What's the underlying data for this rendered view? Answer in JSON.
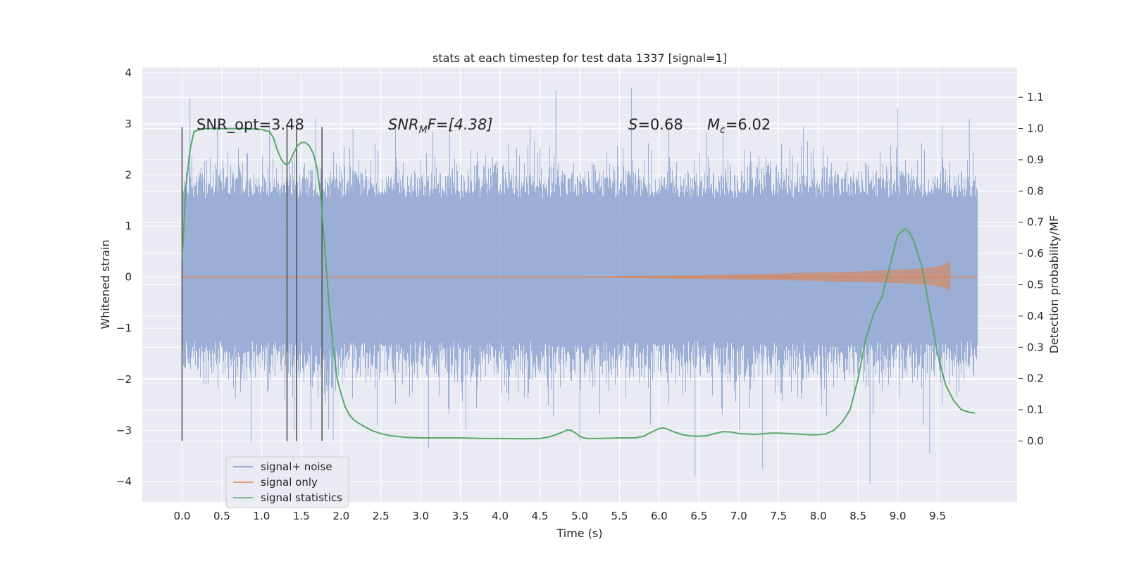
{
  "chart_data": {
    "type": "line",
    "title": "stats at each timestep for test data 1337 [signal=1]",
    "xlabel": "Time (s)",
    "ylabel": "Whitened strain",
    "ylabel_right": "Detection probability/MF",
    "xlim": [
      -0.5,
      10.5
    ],
    "ylim": [
      -4.4,
      4.1
    ],
    "ylim_right": [
      -0.195,
      1.195
    ],
    "x_ticks": [
      "0.0",
      "0.5",
      "1.0",
      "1.5",
      "2.0",
      "2.5",
      "3.0",
      "3.5",
      "4.0",
      "4.5",
      "5.0",
      "5.5",
      "6.0",
      "6.5",
      "7.0",
      "7.5",
      "8.0",
      "8.5",
      "9.0",
      "9.5"
    ],
    "y_ticks": [
      "4",
      "3",
      "2",
      "1",
      "0",
      "−1",
      "−2",
      "−3",
      "−4"
    ],
    "y_right_ticks": [
      "0.0",
      "0.1",
      "0.2",
      "0.3",
      "0.4",
      "0.5",
      "0.6",
      "0.7",
      "0.8",
      "0.9",
      "1.0",
      "1.1"
    ],
    "grid": true,
    "legend_position": "lower-left",
    "annotations": {
      "snr_opt": "SNR_opt=3.48",
      "snr_mf_main": "SNR",
      "snr_mf_sub": "M",
      "snr_mf_rest": "F=[4.38]",
      "s_main": "S",
      "s_rest": "=0.68",
      "mc_main": "M",
      "mc_sub": "c",
      "mc_rest": "=6.02"
    },
    "vertical_markers_x": [
      0.0,
      1.32,
      1.44,
      1.76
    ],
    "series": [
      {
        "name": "signal+ noise",
        "color": "#7d97c9",
        "x_range": [
          0.0,
          10.0
        ],
        "typical_band": [
          -1.4,
          1.7
        ],
        "extremes": [
          {
            "x": 0.1,
            "y": 3.5
          },
          {
            "x": 0.87,
            "y": -3.25
          },
          {
            "x": 1.68,
            "y": 3.1
          },
          {
            "x": 1.9,
            "y": -3.2
          },
          {
            "x": 2.15,
            "y": 2.9
          },
          {
            "x": 3.1,
            "y": -3.35
          },
          {
            "x": 4.7,
            "y": 3.65
          },
          {
            "x": 5.0,
            "y": -3.2
          },
          {
            "x": 5.65,
            "y": 3.7
          },
          {
            "x": 6.45,
            "y": -3.9
          },
          {
            "x": 7.3,
            "y": -3.75
          },
          {
            "x": 8.65,
            "y": -4.05
          },
          {
            "x": 9.0,
            "y": 3.3
          },
          {
            "x": 9.4,
            "y": -3.45
          },
          {
            "x": 9.9,
            "y": 3.1
          }
        ]
      },
      {
        "name": "signal only",
        "color": "#dd8452",
        "x": [
          0.0,
          4.5,
          5.5,
          6.5,
          7.5,
          8.5,
          9.0,
          9.4,
          9.6,
          9.66
        ],
        "envelope": [
          0.0,
          0.0,
          0.02,
          0.04,
          0.07,
          0.11,
          0.14,
          0.18,
          0.25,
          0.32
        ]
      },
      {
        "name": "signal statistics",
        "color": "#55a868",
        "axis": "right",
        "x": [
          0.0,
          0.05,
          0.1,
          0.15,
          0.2,
          0.3,
          0.4,
          0.5,
          0.6,
          0.8,
          1.0,
          1.1,
          1.15,
          1.2,
          1.25,
          1.3,
          1.35,
          1.4,
          1.45,
          1.5,
          1.55,
          1.6,
          1.65,
          1.7,
          1.75,
          1.8,
          1.85,
          1.9,
          1.95,
          2.0,
          2.05,
          2.1,
          2.15,
          2.2,
          2.3,
          2.4,
          2.5,
          2.6,
          2.8,
          3.0,
          3.2,
          3.5,
          3.8,
          4.0,
          4.3,
          4.5,
          4.6,
          4.7,
          4.8,
          4.85,
          4.9,
          4.95,
          5.0,
          5.05,
          5.1,
          5.2,
          5.4,
          5.5,
          5.7,
          5.8,
          5.9,
          6.0,
          6.05,
          6.1,
          6.2,
          6.3,
          6.4,
          6.5,
          6.6,
          6.7,
          6.8,
          6.9,
          7.0,
          7.2,
          7.4,
          7.5,
          7.7,
          7.9,
          8.0,
          8.1,
          8.2,
          8.3,
          8.4,
          8.5,
          8.6,
          8.7,
          8.8,
          8.9,
          9.0,
          9.1,
          9.15,
          9.2,
          9.3,
          9.4,
          9.5,
          9.6,
          9.7,
          9.8,
          9.9,
          9.97
        ],
        "values": [
          0.58,
          0.82,
          0.93,
          0.99,
          0.995,
          1.0,
          1.0,
          1.0,
          1.0,
          1.0,
          0.997,
          0.99,
          0.97,
          0.93,
          0.9,
          0.885,
          0.89,
          0.92,
          0.945,
          0.955,
          0.955,
          0.945,
          0.92,
          0.87,
          0.77,
          0.6,
          0.43,
          0.3,
          0.2,
          0.15,
          0.11,
          0.085,
          0.07,
          0.06,
          0.045,
          0.032,
          0.024,
          0.018,
          0.012,
          0.01,
          0.01,
          0.01,
          0.008,
          0.008,
          0.007,
          0.008,
          0.012,
          0.02,
          0.03,
          0.036,
          0.033,
          0.025,
          0.015,
          0.01,
          0.008,
          0.008,
          0.009,
          0.01,
          0.01,
          0.015,
          0.028,
          0.04,
          0.042,
          0.038,
          0.028,
          0.02,
          0.016,
          0.015,
          0.017,
          0.024,
          0.03,
          0.029,
          0.024,
          0.021,
          0.025,
          0.025,
          0.023,
          0.02,
          0.02,
          0.023,
          0.035,
          0.06,
          0.1,
          0.2,
          0.33,
          0.41,
          0.46,
          0.56,
          0.66,
          0.68,
          0.665,
          0.64,
          0.56,
          0.42,
          0.28,
          0.18,
          0.13,
          0.1,
          0.092,
          0.09
        ]
      }
    ]
  }
}
